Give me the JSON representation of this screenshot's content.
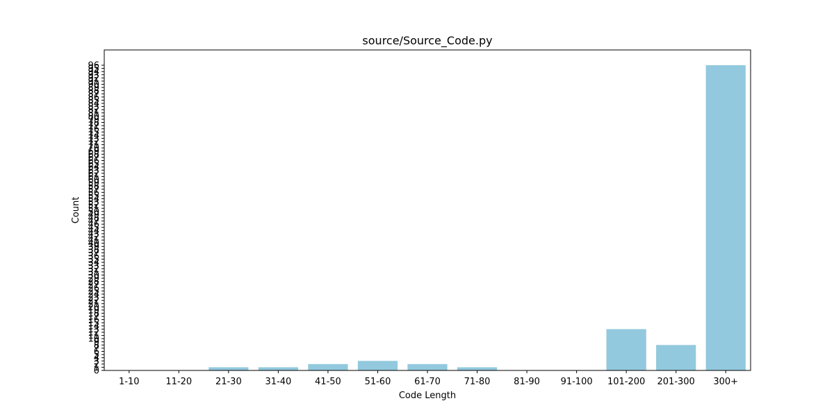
{
  "chart_data": {
    "type": "bar",
    "title": "source/Source_Code.py",
    "xlabel": "Code Length",
    "ylabel": "Count",
    "categories": [
      "1-10",
      "11-20",
      "21-30",
      "31-40",
      "41-50",
      "51-60",
      "61-70",
      "71-80",
      "81-90",
      "91-100",
      "101-200",
      "201-300",
      "300+"
    ],
    "values": [
      0,
      0,
      1,
      1,
      2,
      3,
      2,
      1,
      0,
      0,
      13,
      8,
      96
    ],
    "y_ticks": [
      0,
      1,
      2,
      3,
      4,
      5,
      6,
      7,
      8,
      9,
      10,
      11,
      12,
      13,
      14,
      15,
      16,
      17,
      18,
      19,
      20,
      21,
      22,
      23,
      24,
      25,
      26,
      27,
      28,
      29,
      30,
      31,
      32,
      33,
      34,
      35,
      36,
      37,
      38,
      39,
      40,
      41,
      42,
      43,
      44,
      45,
      46,
      47,
      48,
      49,
      50,
      51,
      52,
      53,
      54,
      55,
      56,
      57,
      58,
      59,
      60,
      61,
      62,
      63,
      64,
      65,
      66,
      67,
      68,
      69,
      70,
      71,
      72,
      73,
      74,
      75,
      76,
      77,
      78,
      79,
      80,
      81,
      82,
      83,
      84,
      85,
      86,
      87,
      88,
      89,
      90,
      91,
      92,
      93,
      94,
      95,
      96
    ],
    "ylim": [
      0,
      100.8
    ],
    "grid": false,
    "legend": "none",
    "bar_color": "#92c9de"
  }
}
